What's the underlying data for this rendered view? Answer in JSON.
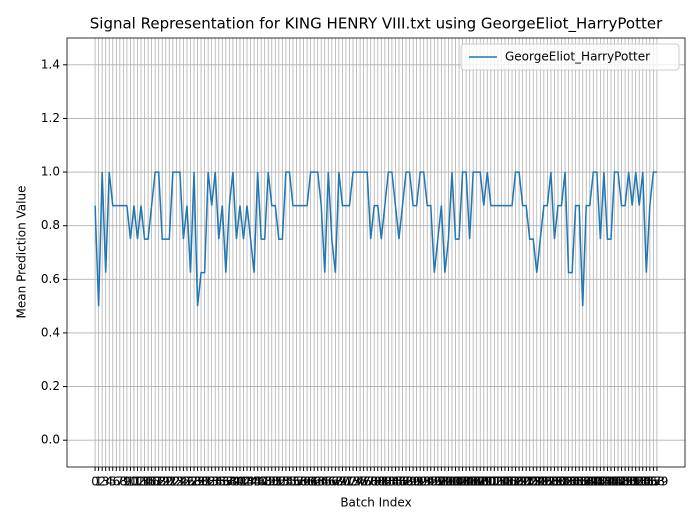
{
  "chart_data": {
    "type": "line",
    "title": "Signal Representation for KING HENRY VIII.txt using GeorgeEliot_HarryPotter",
    "xlabel": "Batch Index",
    "ylabel": "Mean Prediction Value",
    "x": [
      0,
      1,
      2,
      3,
      4,
      5,
      6,
      7,
      8,
      9,
      10,
      11,
      12,
      13,
      14,
      15,
      16,
      17,
      18,
      19,
      20,
      21,
      22,
      23,
      24,
      25,
      26,
      27,
      28,
      29,
      30,
      31,
      32,
      33,
      34,
      35,
      36,
      37,
      38,
      39,
      40,
      41,
      42,
      43,
      44,
      45,
      46,
      47,
      48,
      49,
      50,
      51,
      52,
      53,
      54,
      55,
      56,
      57,
      58,
      59,
      60,
      61,
      62,
      63,
      64,
      65,
      66,
      67,
      68,
      69,
      70,
      71,
      72,
      73,
      74,
      75,
      76,
      77,
      78,
      79,
      80,
      81,
      82,
      83,
      84,
      85,
      86,
      87,
      88,
      89,
      90,
      91,
      92,
      93,
      94,
      95,
      96,
      97,
      98,
      99,
      100,
      101,
      102,
      103,
      104,
      105,
      106,
      107,
      108,
      109,
      110,
      111,
      112,
      113,
      114,
      115,
      116,
      117,
      118,
      119,
      120,
      121,
      122,
      123,
      124,
      125,
      126,
      127,
      128,
      129,
      130,
      131,
      132,
      133,
      134,
      135,
      136,
      137,
      138,
      139,
      140,
      141,
      142,
      143,
      144,
      145,
      146,
      147,
      148,
      149,
      150,
      151,
      152,
      153,
      154,
      155,
      156,
      157,
      158,
      159
    ],
    "series": [
      {
        "name": "GeorgeEliot_HarryPotter",
        "color": "#1f77b4",
        "values": [
          0.875,
          0.5,
          1,
          0.625,
          1,
          0.875,
          0.875,
          0.875,
          0.875,
          0.875,
          0.75,
          0.875,
          0.75,
          0.875,
          0.75,
          0.75,
          0.875,
          1,
          1,
          0.75,
          0.75,
          0.75,
          1,
          1,
          1,
          0.75,
          0.875,
          0.625,
          1,
          0.5,
          0.625,
          0.625,
          1,
          0.875,
          1,
          0.75,
          0.875,
          0.625,
          0.875,
          1,
          0.75,
          0.875,
          0.75,
          0.875,
          0.75,
          0.625,
          1,
          0.75,
          0.75,
          1,
          0.875,
          0.875,
          0.75,
          0.75,
          1,
          1,
          0.875,
          0.875,
          0.875,
          0.875,
          0.875,
          1,
          1,
          1,
          0.875,
          0.625,
          1,
          0.75,
          0.625,
          1,
          0.875,
          0.875,
          0.875,
          1,
          1,
          1,
          1,
          1,
          0.75,
          0.875,
          0.875,
          0.75,
          0.875,
          1,
          1,
          0.875,
          0.75,
          0.875,
          1,
          1,
          0.875,
          0.875,
          1,
          1,
          0.875,
          0.875,
          0.625,
          0.75,
          0.875,
          0.625,
          0.75,
          1,
          0.75,
          0.75,
          1,
          1,
          0.75,
          1,
          1,
          1,
          0.875,
          1,
          0.875,
          0.875,
          0.875,
          0.875,
          0.875,
          0.875,
          0.875,
          1,
          1,
          0.875,
          0.875,
          0.75,
          0.75,
          0.625,
          0.75,
          0.875,
          0.875,
          1,
          0.75,
          0.875,
          0.875,
          1,
          0.625,
          0.625,
          0.875,
          0.875,
          0.5,
          0.875,
          0.875,
          1,
          1,
          0.75,
          1,
          0.75,
          0.75,
          1,
          1,
          0.875,
          0.875,
          1,
          0.875,
          1,
          0.875,
          1,
          0.625,
          0.875,
          1,
          1
        ]
      }
    ],
    "xlim": [
      -7.95,
      166.95
    ],
    "xticks": [
      0,
      1,
      2,
      3,
      4,
      5,
      6,
      7,
      8,
      9,
      10,
      11,
      12,
      13,
      14,
      15,
      16,
      17,
      18,
      19,
      20,
      21,
      22,
      23,
      24,
      25,
      26,
      27,
      28,
      29,
      30,
      31,
      32,
      33,
      34,
      35,
      36,
      37,
      38,
      39,
      40,
      41,
      42,
      43,
      44,
      45,
      46,
      47,
      48,
      49,
      50,
      51,
      52,
      53,
      54,
      55,
      56,
      57,
      58,
      59,
      60,
      61,
      62,
      63,
      64,
      65,
      66,
      67,
      68,
      69,
      70,
      71,
      72,
      73,
      74,
      75,
      76,
      77,
      78,
      79,
      80,
      81,
      82,
      83,
      84,
      85,
      86,
      87,
      88,
      89,
      90,
      91,
      92,
      93,
      94,
      95,
      96,
      97,
      98,
      99,
      100,
      101,
      102,
      103,
      104,
      105,
      106,
      107,
      108,
      109,
      110,
      111,
      112,
      113,
      114,
      115,
      116,
      117,
      118,
      119,
      120,
      121,
      122,
      123,
      124,
      125,
      126,
      127,
      128,
      129,
      130,
      131,
      132,
      133,
      134,
      135,
      136,
      137,
      138,
      139,
      140,
      141,
      142,
      143,
      144,
      145,
      146,
      147,
      148,
      149,
      150,
      151,
      152,
      153,
      154,
      155,
      156,
      157,
      158,
      159
    ],
    "ylim": [
      -0.1,
      1.5
    ],
    "yticks": [
      {
        "value": 0,
        "label": "0.0"
      },
      0.2,
      0.4,
      0.6,
      0.8,
      {
        "value": 1,
        "label": "1.0"
      },
      1.2,
      1.4
    ],
    "grid": true,
    "legend": "upper right"
  }
}
